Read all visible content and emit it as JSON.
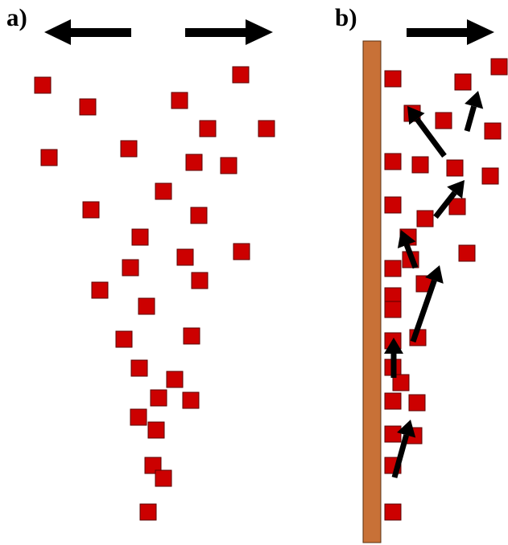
{
  "colors": {
    "particle": "#cc0000",
    "particle_border": "#5a0000",
    "wall": "#c87137",
    "wall_border": "#5a3010",
    "arrow": "#000000",
    "background": "#ffffff"
  },
  "panels": [
    {
      "id": "a",
      "label": "a)",
      "wall": false,
      "particle_count": 30,
      "direction_arrows": [
        "left-arrow-icon",
        "right-arrow-icon"
      ]
    },
    {
      "id": "b",
      "label": "b)",
      "wall": true,
      "particle_count": 37,
      "direction_arrows": [
        "right-arrow-icon"
      ],
      "motion_arrow_count": 7
    }
  ]
}
